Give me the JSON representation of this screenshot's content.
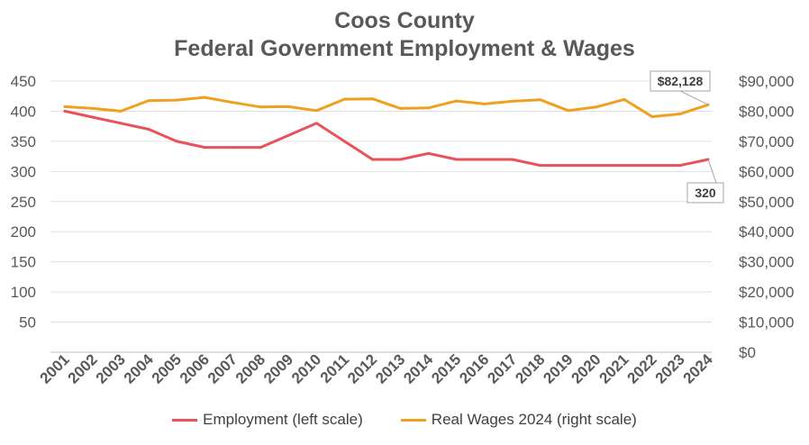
{
  "chart_data": {
    "type": "line",
    "title": "Coos County",
    "subtitle": "Federal Government Employment & Wages",
    "categories": [
      "2001",
      "2002",
      "2003",
      "2004",
      "2005",
      "2006",
      "2007",
      "2008",
      "2009",
      "2010",
      "2011",
      "2012",
      "2013",
      "2014",
      "2015",
      "2016",
      "2017",
      "2018",
      "2019",
      "2020",
      "2021",
      "2022",
      "2023",
      "2024"
    ],
    "series": [
      {
        "name": "Employment (left scale)",
        "axis": "left",
        "color": "#e8535b",
        "values": [
          400,
          390,
          380,
          370,
          350,
          340,
          340,
          340,
          360,
          380,
          350,
          320,
          320,
          330,
          320,
          320,
          320,
          310,
          310,
          310,
          310,
          310,
          310,
          320
        ]
      },
      {
        "name": "Real Wages 2024 (right scale)",
        "axis": "right",
        "color": "#f0a020",
        "values": [
          81500,
          80900,
          80000,
          83500,
          83700,
          84600,
          82900,
          81400,
          81500,
          80200,
          84000,
          84100,
          80900,
          81100,
          83400,
          82400,
          83300,
          83800,
          80200,
          81400,
          83900,
          78200,
          79100,
          82128
        ]
      }
    ],
    "y_left": {
      "min": 0,
      "max": 450,
      "ticks": [
        "50",
        "100",
        "150",
        "200",
        "250",
        "300",
        "350",
        "400",
        "450"
      ]
    },
    "y_right": {
      "min": 0,
      "max": 90000,
      "ticks": [
        "$0",
        "$10,000",
        "$20,000",
        "$30,000",
        "$40,000",
        "$50,000",
        "$60,000",
        "$70,000",
        "$80,000",
        "$90,000"
      ]
    },
    "grid": true,
    "legend_position": "bottom",
    "annotations": [
      {
        "text": "$82,128",
        "series": 1,
        "index": 23
      },
      {
        "text": "320",
        "series": 0,
        "index": 23
      }
    ]
  }
}
